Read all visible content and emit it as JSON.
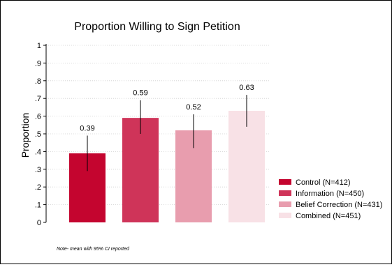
{
  "chart_data": {
    "type": "bar",
    "title": "Proportion Willing to Sign Petition",
    "ylabel": "Proportion",
    "xlabel": "",
    "ylim": [
      0,
      1
    ],
    "yticks": [
      0,
      0.1,
      0.2,
      0.3,
      0.4,
      0.5,
      0.6,
      0.7,
      0.8,
      0.9,
      1
    ],
    "ytick_labels": [
      "0",
      ".1",
      ".2",
      ".3",
      ".4",
      ".5",
      ".6",
      ".7",
      ".8",
      ".9",
      "1"
    ],
    "grid": "horizontal dotted",
    "legend_position": "right",
    "note": "Note- mean with 95% CI reported",
    "bars": [
      {
        "legend": "Control (N=412)",
        "value": 0.39,
        "label": "0.39",
        "ci": [
          0.29,
          0.49
        ],
        "color": "#c4052f"
      },
      {
        "legend": "Information (N=450)",
        "value": 0.59,
        "label": "0.59",
        "ci": [
          0.5,
          0.69
        ],
        "color": "#cf3459"
      },
      {
        "legend": "Belief Correction (N=431)",
        "value": 0.52,
        "label": "0.52",
        "ci": [
          0.42,
          0.61
        ],
        "color": "#e89dae"
      },
      {
        "legend": "Combined (N=451)",
        "value": 0.63,
        "label": "0.63",
        "ci": [
          0.54,
          0.72
        ],
        "color": "#f8e1e6"
      }
    ]
  }
}
